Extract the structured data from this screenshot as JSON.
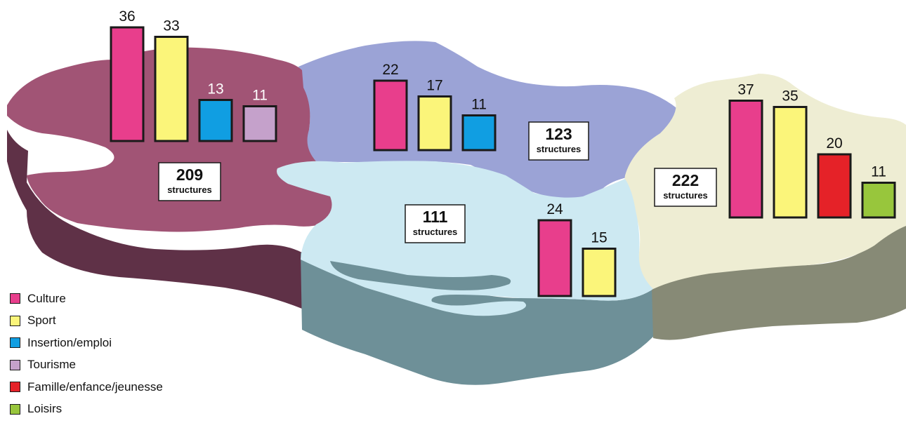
{
  "colors": {
    "culture": "#e83e8c",
    "sport": "#fbf57a",
    "insertion": "#109ee2",
    "tourisme": "#c5a1cb",
    "famille": "#e52228",
    "loisirs": "#98c63c"
  },
  "legend": [
    {
      "key": "culture",
      "label": "Culture"
    },
    {
      "key": "sport",
      "label": "Sport"
    },
    {
      "key": "insertion",
      "label": "Insertion/emploi"
    },
    {
      "key": "tourisme",
      "label": "Tourisme"
    },
    {
      "key": "famille",
      "label": "Famille/enfance/jeunesse"
    },
    {
      "key": "loisirs",
      "label": "Loisirs"
    }
  ],
  "regions": [
    {
      "id": "west",
      "count": "209",
      "count_label": "structures",
      "bars": [
        {
          "key": "culture",
          "value": 36
        },
        {
          "key": "sport",
          "value": 33
        },
        {
          "key": "insertion",
          "value": 13
        },
        {
          "key": "tourisme",
          "value": 11
        }
      ]
    },
    {
      "id": "north",
      "count": "123",
      "count_label": "structures",
      "bars": [
        {
          "key": "culture",
          "value": 22
        },
        {
          "key": "sport",
          "value": 17
        },
        {
          "key": "insertion",
          "value": 11
        }
      ]
    },
    {
      "id": "center",
      "count": "111",
      "count_label": "structures",
      "bars": [
        {
          "key": "culture",
          "value": 24
        },
        {
          "key": "sport",
          "value": 15
        }
      ]
    },
    {
      "id": "east",
      "count": "222",
      "count_label": "structures",
      "bars": [
        {
          "key": "culture",
          "value": 37
        },
        {
          "key": "sport",
          "value": 35
        },
        {
          "key": "famille",
          "value": 20
        },
        {
          "key": "loisirs",
          "value": 11
        }
      ]
    }
  ]
}
